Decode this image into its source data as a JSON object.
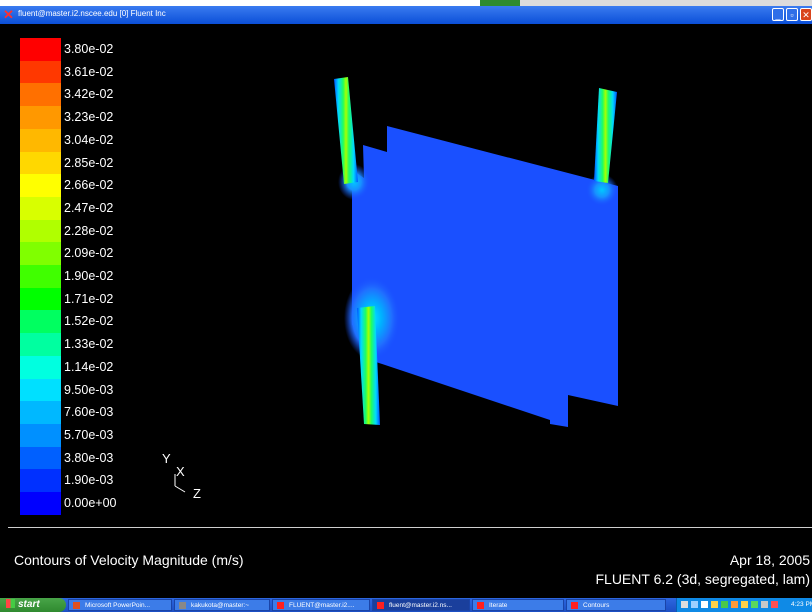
{
  "window": {
    "title": "fluent@master.i2.nscee.edu [0] Fluent Inc",
    "buttons": [
      "minimize",
      "maximize",
      "close"
    ]
  },
  "legend": {
    "labels": [
      "3.80e-02",
      "3.61e-02",
      "3.42e-02",
      "3.23e-02",
      "3.04e-02",
      "2.85e-02",
      "2.66e-02",
      "2.47e-02",
      "2.28e-02",
      "2.09e-02",
      "1.90e-02",
      "1.71e-02",
      "1.52e-02",
      "1.33e-02",
      "1.14e-02",
      "9.50e-03",
      "7.60e-03",
      "5.70e-03",
      "3.80e-03",
      "1.90e-03",
      "0.00e+00"
    ],
    "colors": [
      "#ff0000",
      "#ff3800",
      "#ff7000",
      "#ff9800",
      "#ffb800",
      "#ffd800",
      "#ffff00",
      "#d8ff00",
      "#b0ff00",
      "#80ff00",
      "#40ff00",
      "#00ff00",
      "#00ff60",
      "#00ffa0",
      "#00ffe0",
      "#00e0ff",
      "#00b8ff",
      "#0090ff",
      "#0060ff",
      "#0030ff",
      "#0000ff"
    ]
  },
  "axes": {
    "y": "Y",
    "x": "X",
    "z": "Z"
  },
  "caption": {
    "title": "Contours of Velocity Magnitude (m/s)",
    "date": "Apr 18, 2005",
    "version": "FLUENT 6.2 (3d, segregated, lam)"
  },
  "taskbar": {
    "start_label": "start",
    "buttons": [
      {
        "label": "Microsoft PowerPoin...",
        "icon_color": "#e05020"
      },
      {
        "label": "kakukota@master:~",
        "icon_color": "#888888"
      },
      {
        "label": "FLUENT@master.i2....",
        "icon_color": "#ff2020"
      },
      {
        "label": "fluent@master.i2.ns...",
        "icon_color": "#ff2020"
      },
      {
        "label": "Iterate",
        "icon_color": "#ff2020"
      },
      {
        "label": "Contours",
        "icon_color": "#ff2020"
      }
    ],
    "clock": "4:23 PM"
  }
}
